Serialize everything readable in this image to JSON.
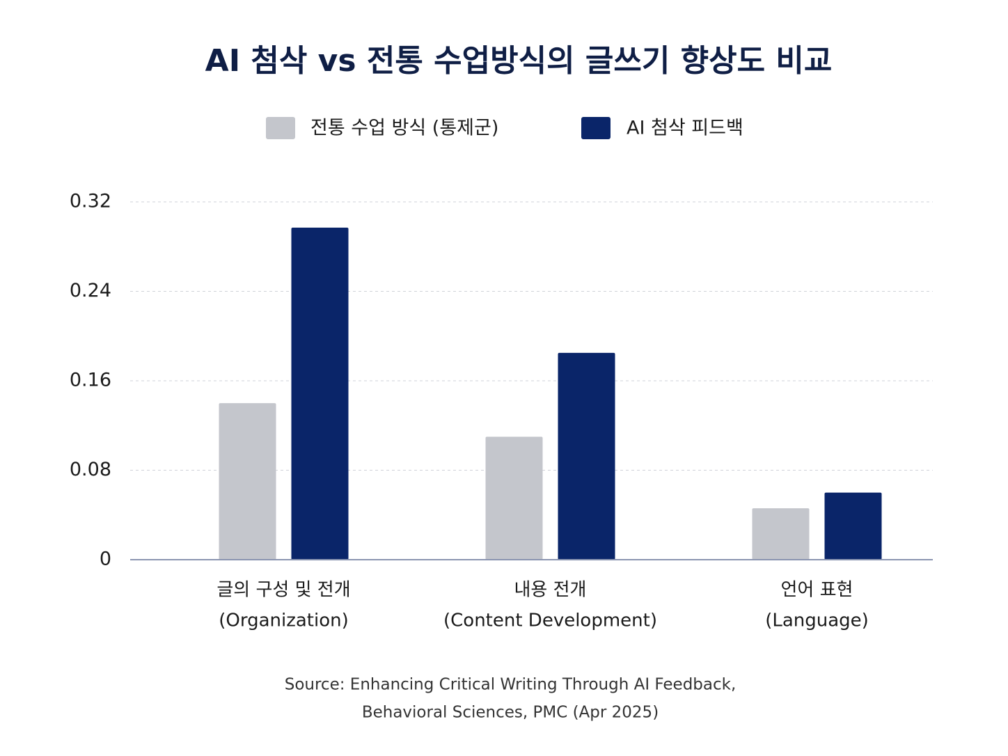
{
  "chart_data": {
    "type": "bar",
    "title": "AI 첨삭 vs 전통 수업방식의 글쓰기 향상도 비교",
    "categories": [
      [
        "글의 구성 및 전개",
        "(Organization)"
      ],
      [
        "내용 전개",
        "(Content Development)"
      ],
      [
        "언어 표현",
        "(Language)"
      ]
    ],
    "series": [
      {
        "name": "전통 수업 방식 (통제군)",
        "color": "#c4c6cc",
        "values": [
          0.14,
          0.11,
          0.046
        ]
      },
      {
        "name": "AI 첨삭 피드백",
        "color": "#0a2569",
        "values": [
          0.297,
          0.185,
          0.06
        ]
      }
    ],
    "ylim": [
      0,
      0.32
    ],
    "yticks": [
      0,
      0.08,
      0.16,
      0.24,
      0.32
    ],
    "grid": true,
    "legend": "top",
    "source": [
      "Source: Enhancing Critical Writing Through AI Feedback,",
      "Behavioral Sciences, PMC (Apr 2025)"
    ]
  }
}
